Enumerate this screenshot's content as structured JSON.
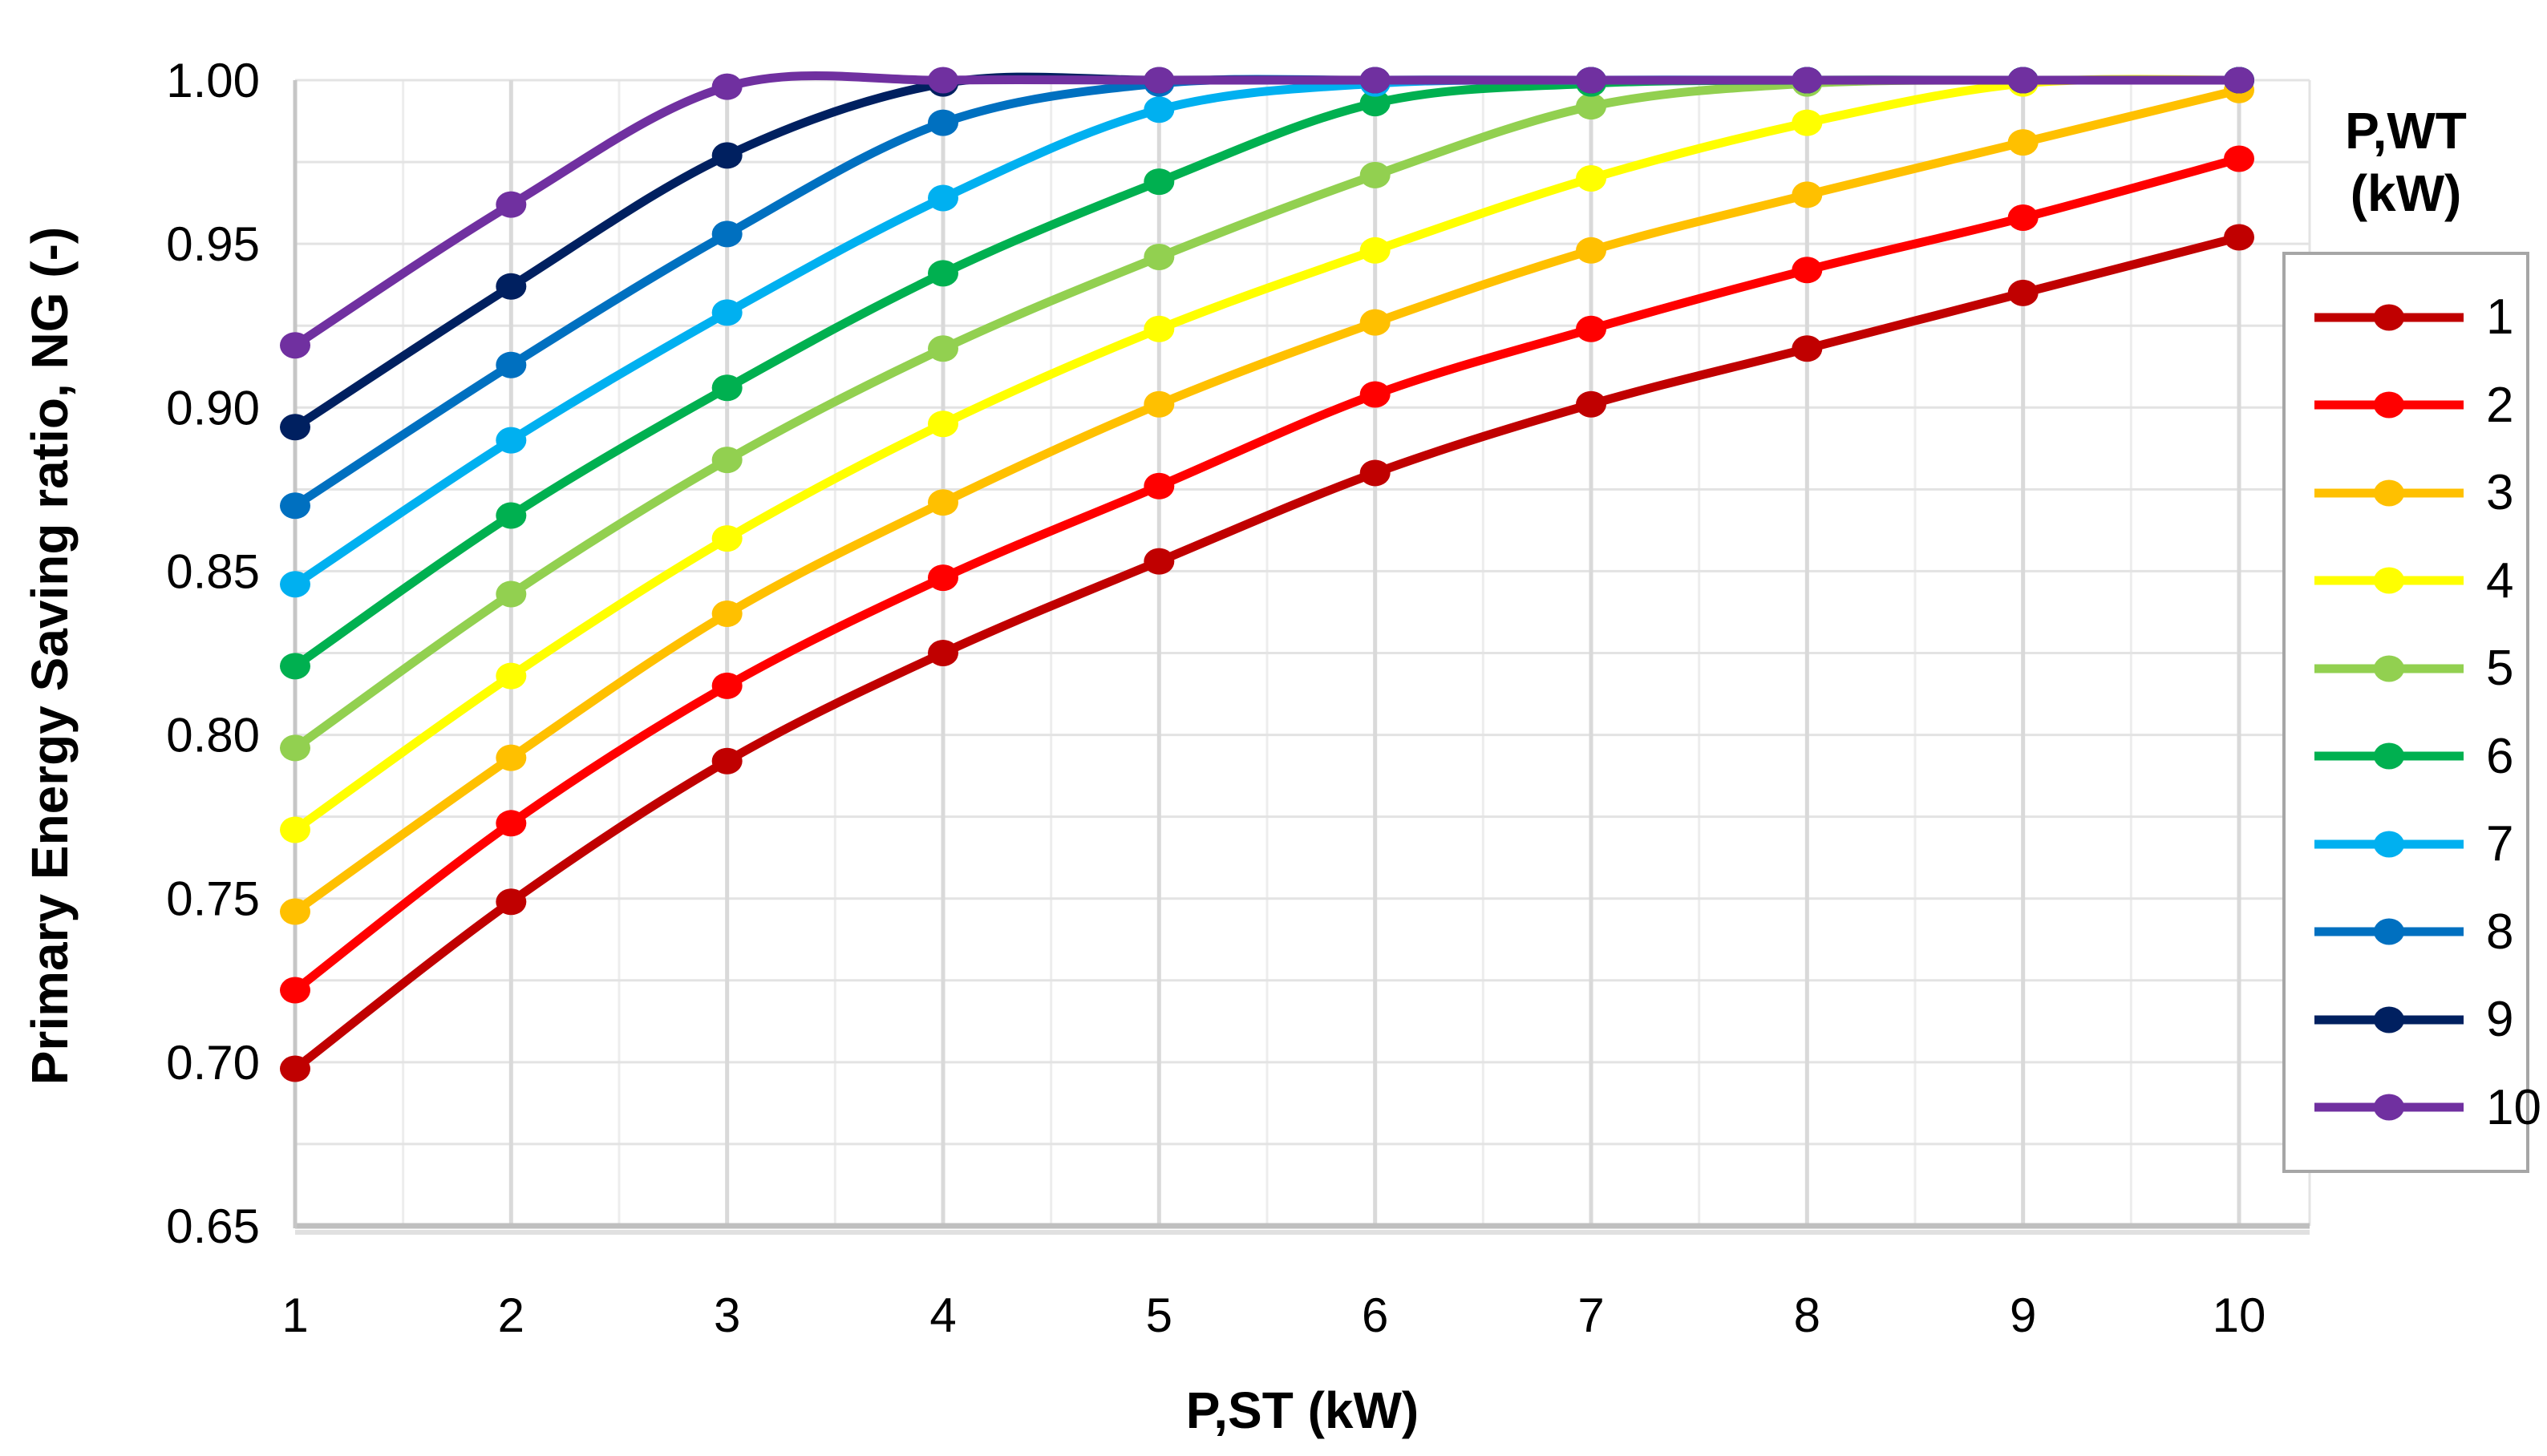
{
  "chart_data": {
    "type": "line",
    "title": "",
    "xlabel": "P,ST (kW)",
    "ylabel": "Primary Energy Saving ratio, NG (-)",
    "x": [
      1,
      2,
      3,
      4,
      5,
      6,
      7,
      8,
      9,
      10
    ],
    "xlim": [
      1,
      10
    ],
    "ylim": [
      0.65,
      1.0
    ],
    "grid": true,
    "x_tick_labels": [
      "1",
      "2",
      "3",
      "4",
      "5",
      "6",
      "7",
      "8",
      "9",
      "10"
    ],
    "y_tick_labels": [
      "0.65",
      "0.70",
      "0.75",
      "0.80",
      "0.85",
      "0.90",
      "0.95",
      "1.00"
    ],
    "y_tick_values": [
      0.65,
      0.7,
      0.75,
      0.8,
      0.85,
      0.9,
      0.95,
      1.0
    ],
    "y_minor_grid_step": 0.025,
    "legend_position": "right",
    "series": [
      {
        "name": "1",
        "color": "#C00000",
        "values": [
          0.698,
          0.749,
          0.792,
          0.825,
          0.853,
          0.88,
          0.901,
          0.918,
          0.935,
          0.952
        ]
      },
      {
        "name": "2",
        "color": "#FF0000",
        "values": [
          0.722,
          0.773,
          0.815,
          0.848,
          0.876,
          0.904,
          0.924,
          0.942,
          0.958,
          0.976
        ]
      },
      {
        "name": "3",
        "color": "#FFC000",
        "values": [
          0.746,
          0.793,
          0.837,
          0.871,
          0.901,
          0.926,
          0.948,
          0.965,
          0.981,
          0.997
        ]
      },
      {
        "name": "4",
        "color": "#FFFF00",
        "values": [
          0.771,
          0.818,
          0.86,
          0.895,
          0.924,
          0.948,
          0.97,
          0.987,
          0.999,
          1.0
        ]
      },
      {
        "name": "5",
        "color": "#92D050",
        "values": [
          0.796,
          0.843,
          0.884,
          0.918,
          0.946,
          0.971,
          0.992,
          0.999,
          1.0,
          1.0
        ]
      },
      {
        "name": "6",
        "color": "#00B050",
        "values": [
          0.821,
          0.867,
          0.906,
          0.941,
          0.969,
          0.993,
          0.999,
          1.0,
          1.0,
          1.0
        ]
      },
      {
        "name": "7",
        "color": "#00B0F0",
        "values": [
          0.846,
          0.89,
          0.929,
          0.964,
          0.991,
          0.999,
          1.0,
          1.0,
          1.0,
          1.0
        ]
      },
      {
        "name": "8",
        "color": "#0070C0",
        "values": [
          0.87,
          0.913,
          0.953,
          0.987,
          0.999,
          1.0,
          1.0,
          1.0,
          1.0,
          1.0
        ]
      },
      {
        "name": "9",
        "color": "#002060",
        "values": [
          0.894,
          0.937,
          0.977,
          0.999,
          1.0,
          1.0,
          1.0,
          1.0,
          1.0,
          1.0
        ]
      },
      {
        "name": "10",
        "color": "#7030A0",
        "values": [
          0.919,
          0.962,
          0.998,
          1.0,
          1.0,
          1.0,
          1.0,
          1.0,
          1.0,
          1.0
        ]
      }
    ]
  },
  "legend": {
    "title_line1": "P,WT",
    "title_line2": "(kW)"
  }
}
